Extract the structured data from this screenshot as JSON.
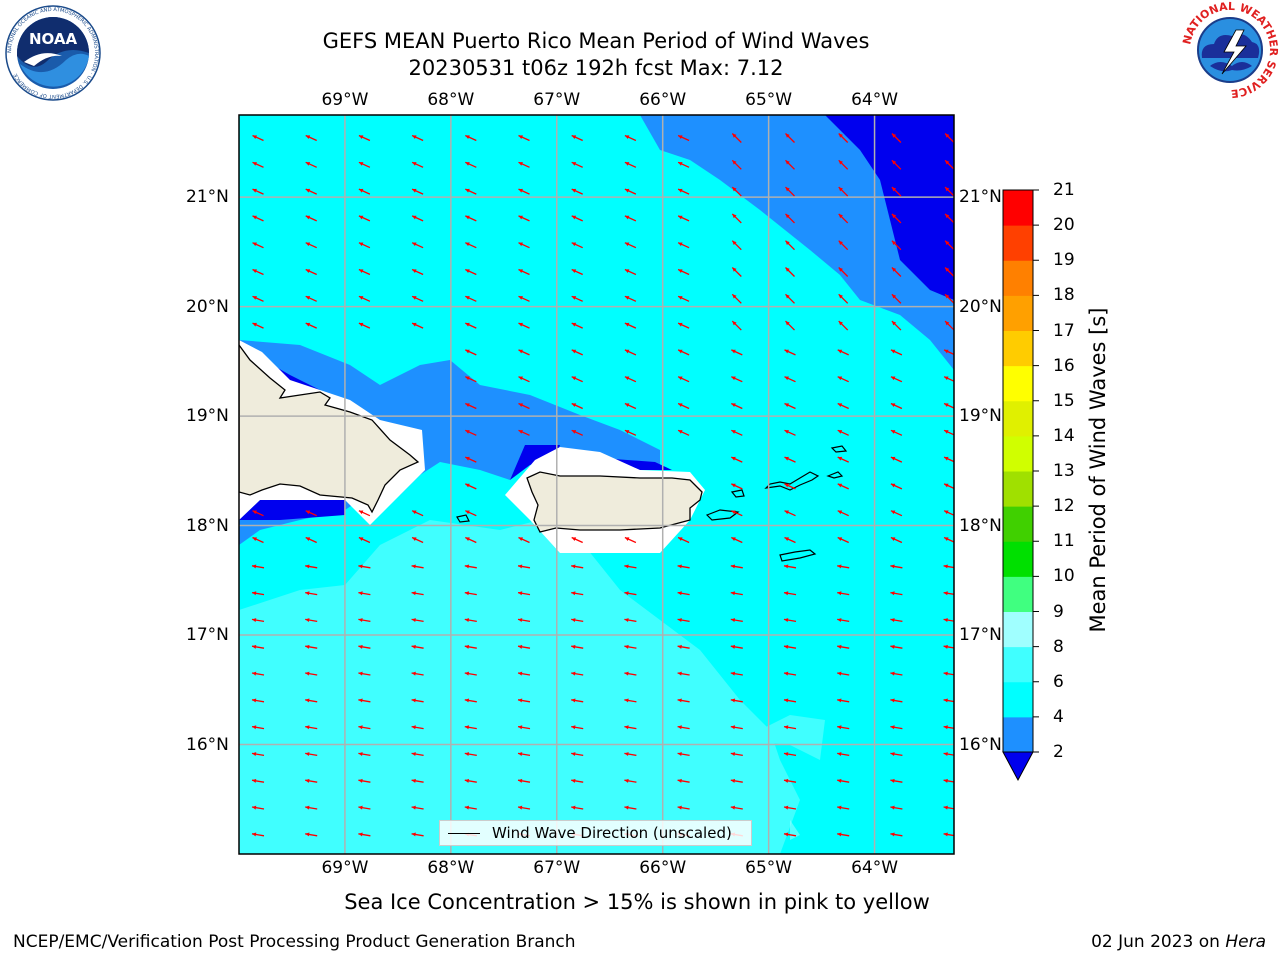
{
  "title_line1": "GEFS MEAN Puerto Rico Mean Period of Wind Waves",
  "title_line2": "20230531 t06z 192h fcst   Max: 7.12",
  "caption": "Sea Ice Concentration > 15% is shown in pink to yellow",
  "footer_left": "NCEP/EMC/Verification Post Processing Product Generation Branch",
  "footer_date": "02 Jun 2023 on",
  "footer_host": "Hera",
  "logo_left_text": "NOAA",
  "logo_left_ring_text": "NATIONAL OCEANIC AND ATMOSPHERIC ADMINISTRATION · U.S. DEPARTMENT OF COMMERCE",
  "logo_right_ring_text": "NATIONAL WEATHER SERVICE",
  "legend_label": "Wind Wave Direction (unscaled)",
  "colorbar": {
    "title": "Mean Period of Wind Waves [s]",
    "levels": [
      "2",
      "4",
      "6",
      "8",
      "9",
      "10",
      "11",
      "12",
      "13",
      "14",
      "15",
      "16",
      "17",
      "18",
      "19",
      "20",
      "21"
    ],
    "colors": [
      "#0000ee",
      "#1e90ff",
      "#00ffff",
      "#40ffff",
      "#a0ffff",
      "#40ff80",
      "#00e000",
      "#40d000",
      "#a0e000",
      "#d0ff00",
      "#e0f000",
      "#ffff00",
      "#ffcc00",
      "#ffa000",
      "#ff8000",
      "#ff4000",
      "#ff0000"
    ]
  },
  "chart_data": {
    "type": "heatmap",
    "xlabel_ticks": [
      "69°W",
      "68°W",
      "67°W",
      "66°W",
      "65°W",
      "64°W"
    ],
    "ylabel_ticks": [
      "21°N",
      "20°N",
      "19°N",
      "18°N",
      "17°N",
      "16°N"
    ],
    "lon_ticks": [
      -69,
      -68,
      -67,
      -66,
      -65,
      -64
    ],
    "lat_ticks": [
      21,
      20,
      19,
      18,
      17,
      16
    ],
    "lon_range": [
      -70.0,
      -63.25
    ],
    "lat_range": [
      15.0,
      21.75
    ],
    "max_value": 7.12,
    "units": "s",
    "arrow_direction": "toward northwest (from southeast)",
    "grid": true
  }
}
